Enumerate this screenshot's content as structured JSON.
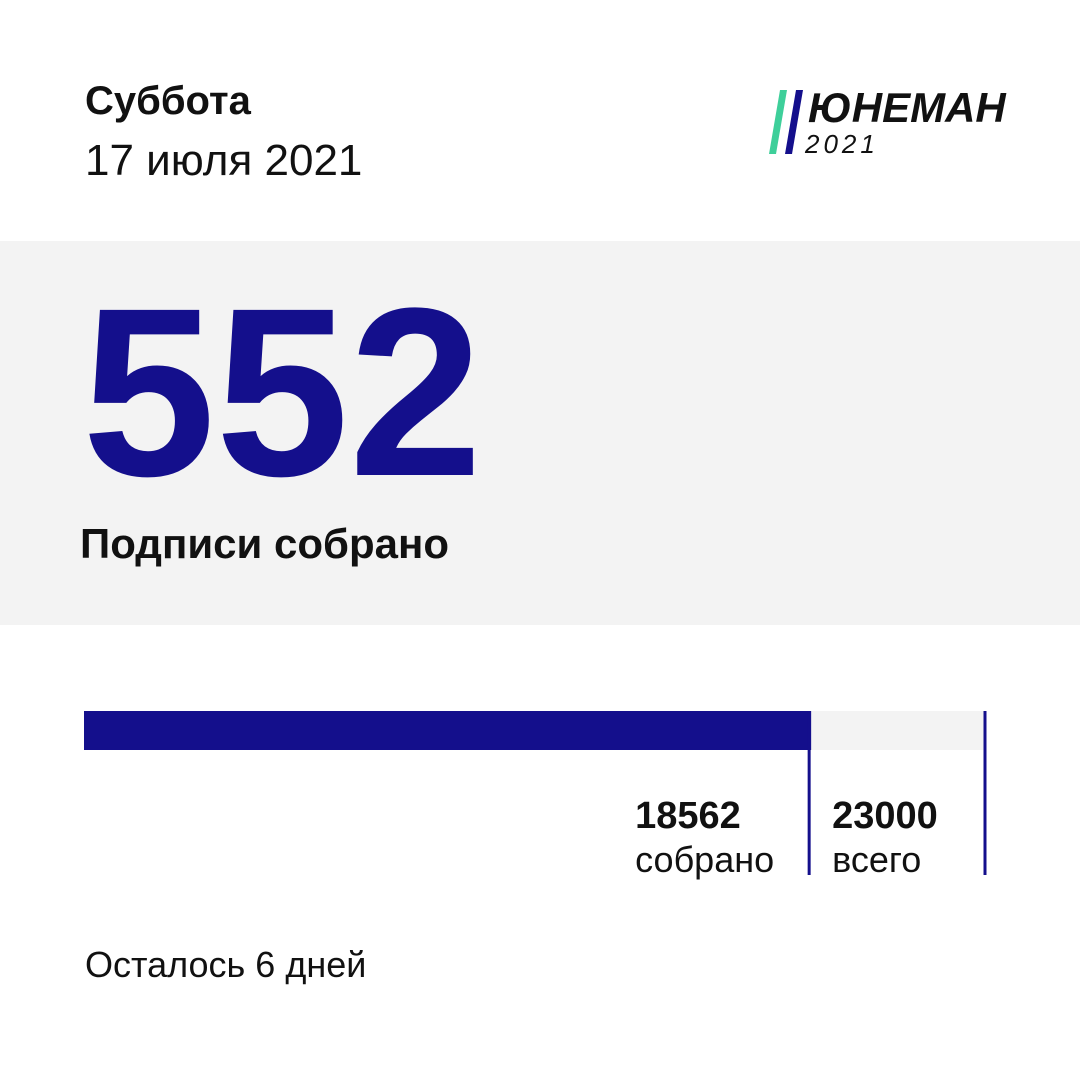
{
  "header": {
    "day": "Суббота",
    "date": "17 июля 2021"
  },
  "logo": {
    "name": "ЮНЕМАН",
    "year": "2021"
  },
  "today": {
    "count": "552",
    "label": "Подписи собрано"
  },
  "progress": {
    "collected": 18562,
    "collected_label": "собрано",
    "total": 23000,
    "total_label": "всего"
  },
  "footer": {
    "remaining": "Осталось 6 дней"
  }
}
